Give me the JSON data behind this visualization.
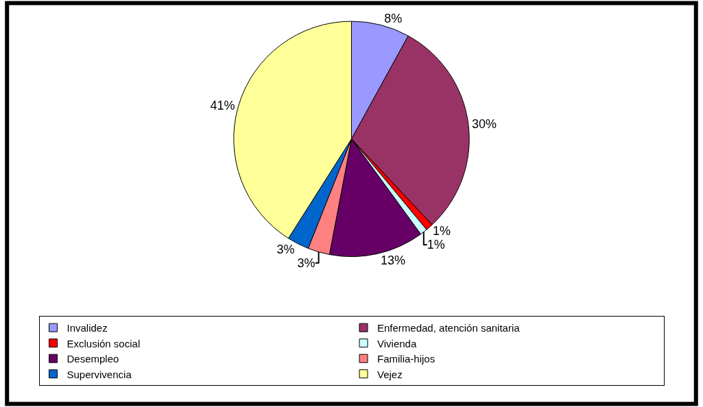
{
  "chart_data": {
    "type": "pie",
    "categories": [
      "Invalidez",
      "Enfermedad, atención sanitaria",
      "Exclusión social",
      "Vivienda",
      "Desempleo",
      "Familia-hijos",
      "Supervivencia",
      "Vejez"
    ],
    "values": [
      8,
      30,
      1,
      1,
      13,
      3,
      3,
      41
    ],
    "colors": [
      "#9999ff",
      "#993366",
      "#ff0000",
      "#ccffff",
      "#660066",
      "#ff8080",
      "#0066cc",
      "#ffff99"
    ],
    "value_labels": [
      "8%",
      "30%",
      "1%",
      "1%",
      "13%",
      "3%",
      "3%",
      "41%"
    ],
    "legend": "bottom"
  }
}
